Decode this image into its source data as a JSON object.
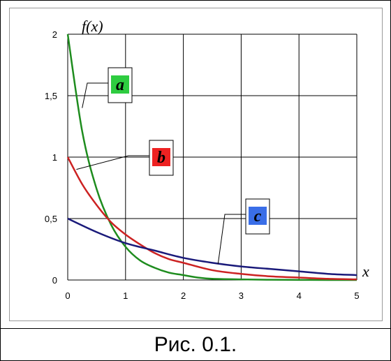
{
  "caption": "Рис. 0.1.",
  "chart_data": {
    "type": "line",
    "title": "",
    "xlabel": "x",
    "ylabel": "f(x)",
    "xlim": [
      0,
      5
    ],
    "ylim": [
      0,
      2
    ],
    "x_ticks": [
      "0",
      "1",
      "2",
      "3",
      "4",
      "5"
    ],
    "y_ticks": [
      "0",
      "0,5",
      "1",
      "1,5",
      "2"
    ],
    "grid": true,
    "series": [
      {
        "name": "a",
        "color": "#1e8c1e",
        "label_bg": "#2ecc40",
        "x": [
          0,
          0.25,
          0.5,
          0.75,
          1,
          1.25,
          1.5,
          1.75,
          2,
          2.25,
          2.5,
          3,
          3.5,
          4,
          4.5,
          5
        ],
        "y": [
          2,
          1.21,
          0.74,
          0.45,
          0.27,
          0.16,
          0.1,
          0.06,
          0.04,
          0.02,
          0.01,
          0.005,
          0.002,
          0.001,
          0,
          0
        ]
      },
      {
        "name": "b",
        "color": "#cc2222",
        "label_bg": "#ee2222",
        "x": [
          0,
          0.25,
          0.5,
          0.75,
          1,
          1.25,
          1.5,
          1.75,
          2,
          2.5,
          3,
          3.5,
          4,
          4.5,
          5
        ],
        "y": [
          1,
          0.78,
          0.61,
          0.47,
          0.37,
          0.29,
          0.22,
          0.17,
          0.14,
          0.08,
          0.05,
          0.03,
          0.02,
          0.01,
          0.005
        ]
      },
      {
        "name": "c",
        "color": "#1a1a7a",
        "label_bg": "#3a6ee8",
        "x": [
          0,
          0.5,
          1,
          1.5,
          2,
          2.5,
          3,
          3.5,
          4,
          4.5,
          5
        ],
        "y": [
          0.5,
          0.39,
          0.3,
          0.24,
          0.18,
          0.14,
          0.11,
          0.09,
          0.07,
          0.05,
          0.04
        ]
      }
    ],
    "annotations": [
      {
        "series": "a",
        "text": "a",
        "point": [
          0.25,
          1.4
        ]
      },
      {
        "series": "b",
        "text": "b",
        "point": [
          0.15,
          0.9
        ]
      },
      {
        "series": "c",
        "text": "c",
        "point": [
          2.6,
          0.13
        ]
      }
    ]
  }
}
